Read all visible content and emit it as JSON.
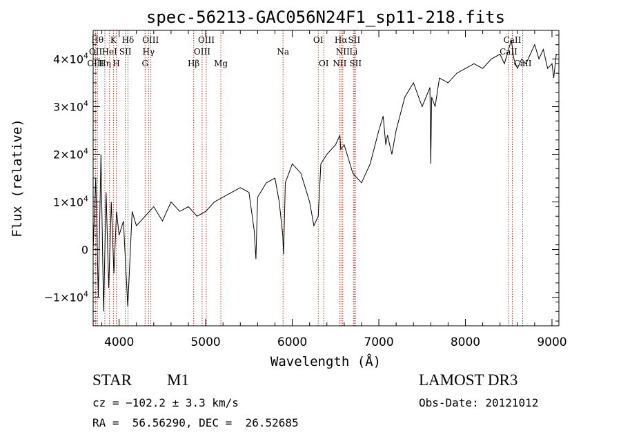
{
  "chart_data": {
    "type": "line",
    "title": "spec-56213-GAC056N24F1_sp11-218.fits",
    "xlabel": "Wavelength (Å)",
    "ylabel": "Flux (relative)",
    "xlim": [
      3700,
      9080
    ],
    "ylim": [
      -16000,
      46000
    ],
    "x_ticks": [
      4000,
      5000,
      6000,
      7000,
      8000,
      9000
    ],
    "x_tick_labels": [
      "4000",
      "5000",
      "6000",
      "7000",
      "8000",
      "9000"
    ],
    "y_ticks": [
      -10000,
      0,
      10000,
      20000,
      30000,
      40000
    ],
    "y_tick_labels": [
      {
        "mant": "−1×10",
        "exp": "4"
      },
      {
        "mant": "0",
        "exp": ""
      },
      {
        "mant": "1×10",
        "exp": "4"
      },
      {
        "mant": "2×10",
        "exp": "4"
      },
      {
        "mant": "3×10",
        "exp": "4"
      },
      {
        "mant": "4×10",
        "exp": "4"
      }
    ],
    "series": [
      {
        "name": "flux",
        "x": [
          3700,
          3730,
          3760,
          3790,
          3820,
          3850,
          3880,
          3910,
          3940,
          3970,
          4000,
          4050,
          4100,
          4150,
          4200,
          4300,
          4400,
          4500,
          4600,
          4700,
          4800,
          4900,
          5000,
          5100,
          5200,
          5300,
          5400,
          5500,
          5560,
          5580,
          5600,
          5700,
          5800,
          5850,
          5890,
          5900,
          5920,
          6000,
          6100,
          6200,
          6250,
          6300,
          6330,
          6400,
          6500,
          6550,
          6560,
          6600,
          6650,
          6700,
          6750,
          6800,
          6900,
          7000,
          7050,
          7080,
          7100,
          7150,
          7200,
          7300,
          7400,
          7500,
          7590,
          7600,
          7610,
          7650,
          7700,
          7800,
          7900,
          8000,
          8100,
          8200,
          8300,
          8400,
          8450,
          8500,
          8530,
          8560,
          8600,
          8650,
          8700,
          8750,
          8800,
          8850,
          8900,
          8950,
          9000,
          9020,
          9050
        ],
        "y": [
          0,
          15000,
          -10000,
          20000,
          -13000,
          12000,
          -8000,
          10000,
          -5000,
          8000,
          3000,
          6000,
          -12000,
          8000,
          5000,
          7000,
          9000,
          6000,
          10000,
          8000,
          9000,
          7000,
          8000,
          10000,
          11000,
          12000,
          13000,
          12000,
          4000,
          -2000,
          11000,
          14000,
          15000,
          10000,
          3000,
          -1000,
          14000,
          18000,
          16000,
          10000,
          5000,
          7000,
          18000,
          20000,
          22000,
          24000,
          21000,
          22000,
          19000,
          16000,
          15000,
          14000,
          18000,
          25000,
          28000,
          22000,
          24000,
          20000,
          25000,
          32000,
          35000,
          30000,
          34000,
          18000,
          32000,
          30000,
          36000,
          35000,
          37000,
          38000,
          39000,
          38000,
          40000,
          41000,
          39000,
          42000,
          44000,
          40000,
          38000,
          40000,
          39000,
          41000,
          43000,
          40000,
          42000,
          38000,
          39000,
          36000,
          41000
        ]
      }
    ],
    "lines": [
      {
        "wl": 3750,
        "label": "Hθ",
        "row": 0
      },
      {
        "wl": 3729,
        "label": "OII",
        "row": 1
      },
      {
        "wl": 3727,
        "label": "OIII",
        "row": 2
      },
      {
        "wl": 3835,
        "label": "Hη",
        "row": 2
      },
      {
        "wl": 3889,
        "label": "HeI",
        "row": 1
      },
      {
        "wl": 3934,
        "label": "K",
        "row": 0
      },
      {
        "wl": 3968,
        "label": "H",
        "row": 2
      },
      {
        "wl": 4072,
        "label": "SII",
        "row": 1
      },
      {
        "wl": 4102,
        "label": "Hδ",
        "row": 0
      },
      {
        "wl": 4300,
        "label": "G",
        "row": 2
      },
      {
        "wl": 4340,
        "label": "Hγ",
        "row": 1
      },
      {
        "wl": 4363,
        "label": "OIII",
        "row": 0
      },
      {
        "wl": 4861,
        "label": "Hβ",
        "row": 2
      },
      {
        "wl": 4959,
        "label": "OIII",
        "row": 1
      },
      {
        "wl": 5007,
        "label": "OIII",
        "row": 0
      },
      {
        "wl": 5175,
        "label": "Mg",
        "row": 2
      },
      {
        "wl": 5893,
        "label": "Na",
        "row": 1
      },
      {
        "wl": 6300,
        "label": "OI",
        "row": 0
      },
      {
        "wl": 6364,
        "label": "OI",
        "row": 2
      },
      {
        "wl": 6548,
        "label": "NII",
        "row": 2
      },
      {
        "wl": 6563,
        "label": "Hα",
        "row": 0
      },
      {
        "wl": 6583,
        "label": "NII",
        "row": 1
      },
      {
        "wl": 6707,
        "label": "Li",
        "row": 1
      },
      {
        "wl": 6716,
        "label": "SII",
        "row": 0
      },
      {
        "wl": 6731,
        "label": "SII",
        "row": 2
      },
      {
        "wl": 8498,
        "label": "CaII",
        "row": 1
      },
      {
        "wl": 8542,
        "label": "CaII",
        "row": 0
      },
      {
        "wl": 8662,
        "label": "CaII",
        "row": 2
      }
    ]
  },
  "info": {
    "class": "STAR",
    "subclass": "M1",
    "survey": "LAMOST DR3",
    "cz": "cz = −102.2 ± 3.3 km/s",
    "obsdate": "Obs-Date: 20121012",
    "radec": "RA =  56.56290, DEC =  26.52685"
  },
  "colors": {
    "spectrum": "#000000",
    "line_marker": "#c0392b",
    "axis": "#000000"
  }
}
